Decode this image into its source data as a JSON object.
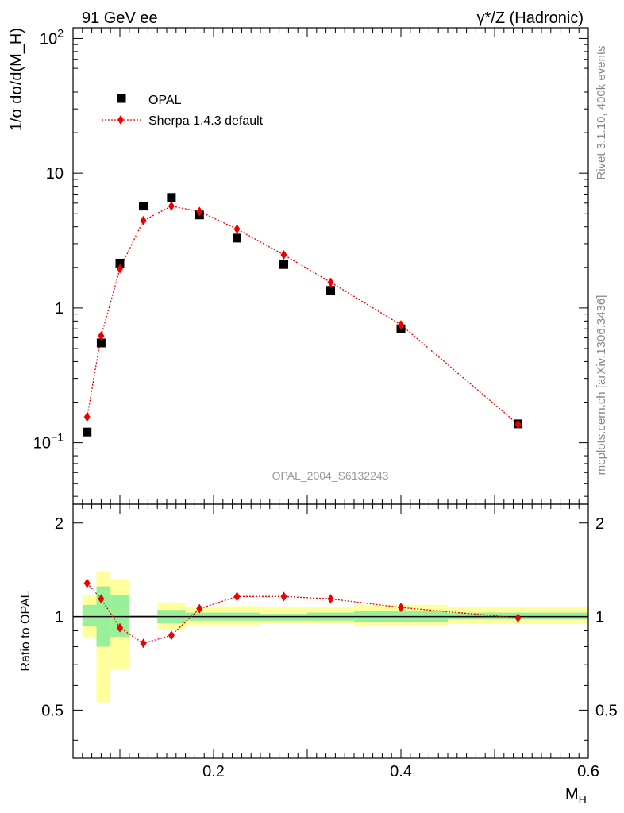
{
  "header": {
    "left": "91 GeV ee",
    "right": "γ*/Z (Hadronic)"
  },
  "side_text": {
    "rivet": "Rivet 3.1.10,  400k events",
    "site": "mcplots.cern.ch [arXiv:1306.3436]"
  },
  "chart_data": [
    {
      "type": "scatter",
      "panel": "main",
      "ylabel": "1/σ dσ/d(M_H)",
      "y_scale": "log",
      "ylim": [
        0.035,
        120
      ],
      "xlim": [
        0.05,
        0.6
      ],
      "yticks": [
        {
          "value": 0.1,
          "base": "10",
          "exp": "−1"
        },
        {
          "value": 1,
          "label": "1"
        },
        {
          "value": 10,
          "label": "10"
        },
        {
          "value": 100,
          "base": "10",
          "exp": "2"
        }
      ],
      "watermark": "OPAL_2004_S6132243",
      "legend_position": "top-left",
      "series": [
        {
          "name": "OPAL",
          "marker": "square",
          "color": "#000000",
          "x": [
            0.065,
            0.08,
            0.1,
            0.125,
            0.155,
            0.185,
            0.225,
            0.275,
            0.325,
            0.4,
            0.525
          ],
          "y": [
            0.12,
            0.55,
            2.15,
            5.7,
            6.6,
            4.9,
            3.3,
            2.1,
            1.35,
            0.7,
            0.138
          ]
        },
        {
          "name": "Sherpa 1.4.3 default",
          "marker": "diamond",
          "line": "dotted",
          "color": "#ee0000",
          "x": [
            0.065,
            0.08,
            0.1,
            0.125,
            0.155,
            0.185,
            0.225,
            0.275,
            0.325,
            0.4,
            0.525
          ],
          "y": [
            0.155,
            0.62,
            1.95,
            4.45,
            5.7,
            5.2,
            3.85,
            2.48,
            1.55,
            0.75,
            0.137
          ]
        }
      ]
    },
    {
      "type": "scatter",
      "panel": "ratio",
      "ylabel": "Ratio to OPAL",
      "xlabel": "M_H",
      "xlim": [
        0.05,
        0.6
      ],
      "ylim": [
        0.35,
        2.3
      ],
      "yticks": [
        0.5,
        1,
        2
      ],
      "xticks": [
        0.2,
        0.4,
        0.6
      ],
      "bands": [
        {
          "x0": 0.06,
          "x1": 0.075,
          "stat_lo": 0.93,
          "stat_hi": 1.09,
          "tot_lo": 0.86,
          "tot_hi": 1.17
        },
        {
          "x0": 0.075,
          "x1": 0.09,
          "stat_lo": 0.8,
          "stat_hi": 1.25,
          "tot_lo": 0.53,
          "tot_hi": 1.4
        },
        {
          "x0": 0.09,
          "x1": 0.11,
          "stat_lo": 0.86,
          "stat_hi": 1.17,
          "tot_lo": 0.68,
          "tot_hi": 1.32
        },
        {
          "x0": 0.11,
          "x1": 0.14,
          "stat_lo": 0.99,
          "stat_hi": 1.01,
          "tot_lo": 0.985,
          "tot_hi": 1.015
        },
        {
          "x0": 0.14,
          "x1": 0.17,
          "stat_lo": 0.95,
          "stat_hi": 1.05,
          "tot_lo": 0.91,
          "tot_hi": 1.11
        },
        {
          "x0": 0.17,
          "x1": 0.2,
          "stat_lo": 0.97,
          "stat_hi": 1.03,
          "tot_lo": 0.94,
          "tot_hi": 1.07
        },
        {
          "x0": 0.2,
          "x1": 0.25,
          "stat_lo": 0.97,
          "stat_hi": 1.03,
          "tot_lo": 0.94,
          "tot_hi": 1.08
        },
        {
          "x0": 0.25,
          "x1": 0.3,
          "stat_lo": 0.97,
          "stat_hi": 1.02,
          "tot_lo": 0.95,
          "tot_hi": 1.07
        },
        {
          "x0": 0.3,
          "x1": 0.35,
          "stat_lo": 0.97,
          "stat_hi": 1.03,
          "tot_lo": 0.95,
          "tot_hi": 1.07
        },
        {
          "x0": 0.35,
          "x1": 0.45,
          "stat_lo": 0.96,
          "stat_hi": 1.04,
          "tot_lo": 0.93,
          "tot_hi": 1.09
        },
        {
          "x0": 0.45,
          "x1": 0.6,
          "stat_lo": 0.98,
          "stat_hi": 1.03,
          "tot_lo": 0.95,
          "tot_hi": 1.07
        }
      ],
      "series": [
        {
          "name": "Sherpa 1.4.3 default",
          "marker": "diamond",
          "line": "dotted",
          "color": "#ee0000",
          "x": [
            0.065,
            0.08,
            0.1,
            0.125,
            0.155,
            0.185,
            0.225,
            0.275,
            0.325,
            0.4,
            0.525
          ],
          "y": [
            1.28,
            1.14,
            0.92,
            0.82,
            0.87,
            1.06,
            1.16,
            1.16,
            1.14,
            1.07,
            0.99
          ]
        }
      ],
      "reference_line": 1
    }
  ],
  "colors": {
    "stat_band": "#98f098",
    "total_band": "#ffff9c",
    "data": "#000000",
    "mc": "#ee0000",
    "side_text": "#888888"
  }
}
